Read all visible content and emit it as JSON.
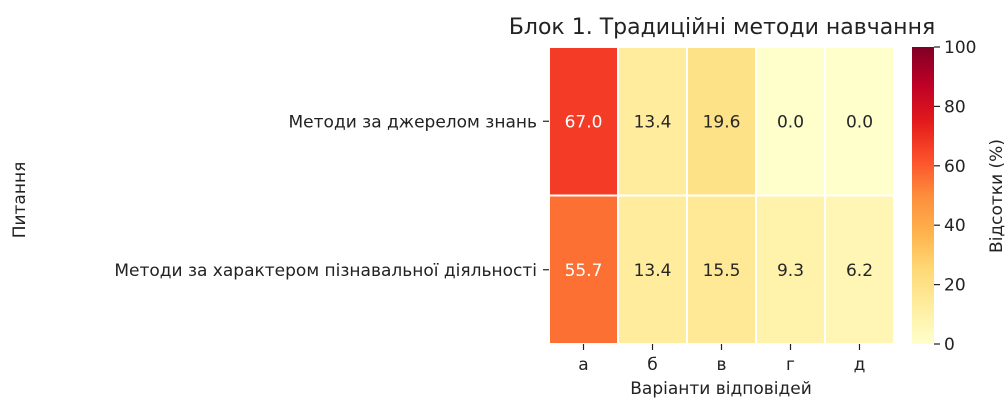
{
  "chart_data": {
    "type": "heatmap",
    "title": "Блок 1. Традиційні методи навчання",
    "xlabel": "Варіанти відповідей",
    "ylabel": "Питання",
    "columns": [
      "а",
      "б",
      "в",
      "г",
      "д"
    ],
    "rows": [
      "Методи за джерелом знань",
      "Методи за характером пізнавальної діяльності"
    ],
    "values": [
      [
        67.0,
        13.4,
        19.6,
        0.0,
        0.0
      ],
      [
        55.7,
        13.4,
        15.5,
        9.3,
        6.2
      ]
    ],
    "value_format": "0.0",
    "colorbar": {
      "label": "Відсотки (%)",
      "min": 0,
      "max": 100,
      "ticks": [
        "0",
        "20",
        "40",
        "60",
        "80",
        "100"
      ],
      "colormap": "YlOrRd",
      "stops": [
        "#ffffcc",
        "#ffeda0",
        "#fed976",
        "#feb24c",
        "#fd8d3c",
        "#fc4e2a",
        "#e31a1c",
        "#bd0026",
        "#800026"
      ]
    },
    "grid": false
  }
}
